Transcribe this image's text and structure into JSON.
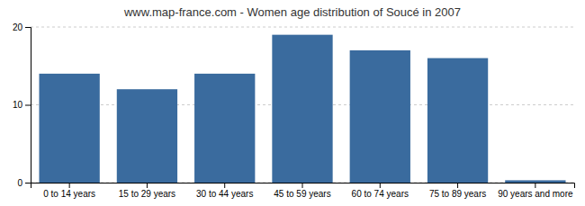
{
  "chart_data": {
    "type": "bar",
    "title": "www.map-france.com - Women age distribution of Soucé in 2007",
    "categories": [
      "0 to 14 years",
      "15 to 29 years",
      "30 to 44 years",
      "45 to 59 years",
      "60 to 74 years",
      "75 to 89 years",
      "90 years and more"
    ],
    "values": [
      14,
      12,
      14,
      19,
      17,
      16,
      0.3
    ],
    "color": "#3a6b9e",
    "ylim": [
      0,
      20
    ],
    "yticks": [
      0,
      10,
      20
    ],
    "grid": true
  }
}
